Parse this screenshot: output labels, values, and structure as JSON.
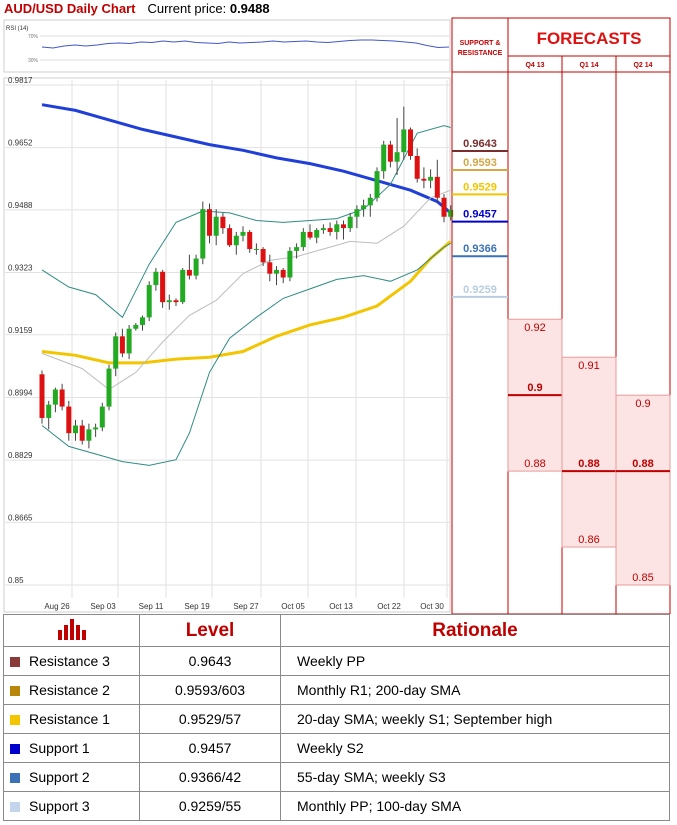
{
  "header": {
    "title": "AUD/USD Daily Chart",
    "price_label": "Current price:",
    "price_value": "0.9488"
  },
  "rsi": {
    "label": "RSI (14)",
    "tick_top": "70%",
    "tick_bottom": "30%"
  },
  "panel": {
    "sr_title": "SUPPORT & RESISTANCE",
    "forecasts_title": "FORECASTS"
  },
  "table": {
    "headers": {
      "level": "Level",
      "rationale": "Rationale"
    },
    "rows": [
      {
        "name": "Resistance 3",
        "level": "0.9643",
        "rationale": "Weekly PP",
        "color": "#8b3a3a"
      },
      {
        "name": "Resistance 2",
        "level": "0.9593/603",
        "rationale": "Monthly R1; 200-day SMA",
        "color": "#b8860b"
      },
      {
        "name": "Resistance 1",
        "level": "0.9529/57",
        "rationale": "20-day SMA; weekly S1; September high",
        "color": "#f2c500"
      },
      {
        "name": "Support 1",
        "level": "0.9457",
        "rationale": "Weekly S2",
        "color": "#0000cc"
      },
      {
        "name": "Support 2",
        "level": "0.9366/42",
        "rationale": "55-day SMA; weekly S3",
        "color": "#3a72b8"
      },
      {
        "name": "Support 3",
        "level": "0.9259/55",
        "rationale": "Monthly PP; 100-day SMA",
        "color": "#c4d4ec"
      }
    ]
  },
  "chart_data": {
    "type": "candlestick",
    "y_ticks": [
      0.9817,
      0.9652,
      0.9488,
      0.9323,
      0.9159,
      0.8994,
      0.8829,
      0.8665,
      0.85
    ],
    "ylim": [
      0.85,
      0.9817
    ],
    "x_ticks": [
      "Aug 26",
      "Sep 03",
      "Sep 11",
      "Sep 19",
      "Sep 27",
      "Oct 05",
      "Oct 13",
      "Oct 22",
      "Oct 30"
    ],
    "candles": [
      [
        0.9055,
        0.9065,
        0.8925,
        0.894
      ],
      [
        0.894,
        0.8985,
        0.891,
        0.8975
      ],
      [
        0.8975,
        0.902,
        0.8955,
        0.9015
      ],
      [
        0.9015,
        0.903,
        0.896,
        0.897
      ],
      [
        0.897,
        0.8985,
        0.888,
        0.89
      ],
      [
        0.89,
        0.8935,
        0.888,
        0.892
      ],
      [
        0.892,
        0.8935,
        0.887,
        0.888
      ],
      [
        0.888,
        0.8925,
        0.886,
        0.891
      ],
      [
        0.891,
        0.8925,
        0.889,
        0.8915
      ],
      [
        0.8915,
        0.898,
        0.8905,
        0.897
      ],
      [
        0.897,
        0.908,
        0.896,
        0.907
      ],
      [
        0.907,
        0.9165,
        0.905,
        0.9155
      ],
      [
        0.9155,
        0.9175,
        0.91,
        0.911
      ],
      [
        0.911,
        0.9185,
        0.9095,
        0.9175
      ],
      [
        0.9175,
        0.919,
        0.917,
        0.9185
      ],
      [
        0.9185,
        0.921,
        0.917,
        0.9205
      ],
      [
        0.9205,
        0.93,
        0.9195,
        0.929
      ],
      [
        0.929,
        0.9335,
        0.9275,
        0.9325
      ],
      [
        0.9325,
        0.933,
        0.923,
        0.9245
      ],
      [
        0.9245,
        0.9265,
        0.9225,
        0.925
      ],
      [
        0.925,
        0.9255,
        0.9235,
        0.9245
      ],
      [
        0.9245,
        0.9335,
        0.924,
        0.933
      ],
      [
        0.933,
        0.937,
        0.9305,
        0.9315
      ],
      [
        0.9315,
        0.937,
        0.9305,
        0.936
      ],
      [
        0.936,
        0.951,
        0.9345,
        0.949
      ],
      [
        0.949,
        0.9505,
        0.94,
        0.942
      ],
      [
        0.942,
        0.949,
        0.9395,
        0.947
      ],
      [
        0.947,
        0.948,
        0.9425,
        0.944
      ],
      [
        0.944,
        0.945,
        0.939,
        0.9395
      ],
      [
        0.9395,
        0.943,
        0.937,
        0.942
      ],
      [
        0.942,
        0.9445,
        0.9405,
        0.943
      ],
      [
        0.943,
        0.9435,
        0.9375,
        0.9385
      ],
      [
        0.9385,
        0.94,
        0.937,
        0.9385
      ],
      [
        0.9385,
        0.939,
        0.934,
        0.935
      ],
      [
        0.935,
        0.937,
        0.93,
        0.932
      ],
      [
        0.932,
        0.934,
        0.929,
        0.933
      ],
      [
        0.933,
        0.9335,
        0.9295,
        0.931
      ],
      [
        0.931,
        0.939,
        0.93,
        0.938
      ],
      [
        0.938,
        0.94,
        0.936,
        0.939
      ],
      [
        0.939,
        0.944,
        0.938,
        0.943
      ],
      [
        0.943,
        0.945,
        0.941,
        0.9415
      ],
      [
        0.9415,
        0.944,
        0.94,
        0.9435
      ],
      [
        0.9435,
        0.945,
        0.9425,
        0.944
      ],
      [
        0.944,
        0.9455,
        0.942,
        0.943
      ],
      [
        0.943,
        0.946,
        0.941,
        0.945
      ],
      [
        0.945,
        0.946,
        0.941,
        0.944
      ],
      [
        0.944,
        0.948,
        0.943,
        0.947
      ],
      [
        0.947,
        0.95,
        0.944,
        0.949
      ],
      [
        0.949,
        0.9515,
        0.947,
        0.95
      ],
      [
        0.95,
        0.953,
        0.947,
        0.952
      ],
      [
        0.952,
        0.96,
        0.951,
        0.959
      ],
      [
        0.959,
        0.967,
        0.957,
        0.966
      ],
      [
        0.966,
        0.967,
        0.96,
        0.9615
      ],
      [
        0.9615,
        0.973,
        0.958,
        0.964
      ],
      [
        0.964,
        0.976,
        0.962,
        0.97
      ],
      [
        0.97,
        0.9705,
        0.962,
        0.963
      ],
      [
        0.963,
        0.965,
        0.956,
        0.957
      ],
      [
        0.957,
        0.96,
        0.9545,
        0.9565
      ],
      [
        0.9565,
        0.9595,
        0.9545,
        0.9575
      ],
      [
        0.9575,
        0.962,
        0.951,
        0.952
      ],
      [
        0.952,
        0.953,
        0.9455,
        0.947
      ],
      [
        0.947,
        0.95,
        0.946,
        0.9488
      ]
    ],
    "lines": [
      {
        "color": "#1f3fd8",
        "width": 3,
        "points": [
          [
            0,
            0.9765
          ],
          [
            5,
            0.975
          ],
          [
            10,
            0.9725
          ],
          [
            15,
            0.97
          ],
          [
            20,
            0.968
          ],
          [
            25,
            0.966
          ],
          [
            30,
            0.9645
          ],
          [
            35,
            0.9625
          ],
          [
            40,
            0.961
          ],
          [
            45,
            0.959
          ],
          [
            50,
            0.9565
          ],
          [
            55,
            0.954
          ],
          [
            59,
            0.951
          ],
          [
            61,
            0.948
          ]
        ]
      },
      {
        "color": "#f2c500",
        "width": 3,
        "points": [
          [
            0,
            0.9115
          ],
          [
            5,
            0.9105
          ],
          [
            10,
            0.9085
          ],
          [
            15,
            0.9085
          ],
          [
            20,
            0.9095
          ],
          [
            25,
            0.91
          ],
          [
            30,
            0.9115
          ],
          [
            35,
            0.9155
          ],
          [
            40,
            0.9185
          ],
          [
            45,
            0.9205
          ],
          [
            50,
            0.9235
          ],
          [
            55,
            0.93
          ],
          [
            58,
            0.936
          ],
          [
            61,
            0.9405
          ]
        ]
      },
      {
        "color": "#2e8b82",
        "width": 1,
        "points": [
          [
            0,
            0.933
          ],
          [
            4,
            0.9285
          ],
          [
            8,
            0.9265
          ],
          [
            12,
            0.9205
          ],
          [
            16,
            0.9345
          ],
          [
            20,
            0.9455
          ],
          [
            24,
            0.9485
          ],
          [
            28,
            0.948
          ],
          [
            32,
            0.946
          ],
          [
            36,
            0.9455
          ],
          [
            40,
            0.946
          ],
          [
            44,
            0.9465
          ],
          [
            48,
            0.949
          ],
          [
            52,
            0.9555
          ],
          [
            56,
            0.969
          ],
          [
            60,
            0.971
          ],
          [
            61,
            0.9705
          ]
        ]
      },
      {
        "color": "#2e8b82",
        "width": 1,
        "points": [
          [
            0,
            0.892
          ],
          [
            4,
            0.8865
          ],
          [
            8,
            0.8845
          ],
          [
            12,
            0.8825
          ],
          [
            16,
            0.8815
          ],
          [
            20,
            0.883
          ],
          [
            22,
            0.89
          ],
          [
            25,
            0.906
          ],
          [
            28,
            0.915
          ],
          [
            32,
            0.9205
          ],
          [
            36,
            0.9255
          ],
          [
            40,
            0.928
          ],
          [
            44,
            0.9305
          ],
          [
            48,
            0.9315
          ],
          [
            52,
            0.93
          ],
          [
            56,
            0.933
          ],
          [
            60,
            0.939
          ],
          [
            61,
            0.94
          ]
        ]
      },
      {
        "color": "#bdbdbd",
        "width": 1,
        "points": [
          [
            0,
            0.911
          ],
          [
            6,
            0.907
          ],
          [
            10,
            0.9015
          ],
          [
            14,
            0.906
          ],
          [
            18,
            0.914
          ],
          [
            22,
            0.921
          ],
          [
            26,
            0.925
          ],
          [
            30,
            0.932
          ],
          [
            34,
            0.9355
          ],
          [
            38,
            0.9365
          ],
          [
            42,
            0.9385
          ],
          [
            46,
            0.9405
          ],
          [
            50,
            0.94
          ],
          [
            54,
            0.9445
          ],
          [
            58,
            0.952
          ],
          [
            61,
            0.954
          ]
        ]
      }
    ],
    "rsi": [
      48,
      46,
      50,
      52,
      50,
      52,
      55,
      56,
      55,
      58,
      57,
      60,
      58,
      60,
      57,
      56,
      55,
      58,
      56,
      57,
      58,
      60,
      58,
      59,
      60,
      58,
      57,
      59,
      61,
      62,
      62,
      61,
      60,
      58,
      56,
      51,
      47,
      48
    ],
    "sr_levels": [
      {
        "label": "0.9643",
        "value": 0.9643,
        "color": "#7b2c2c"
      },
      {
        "label": "0.9593",
        "value": 0.9593,
        "color": "#d4a645"
      },
      {
        "label": "0.9529",
        "value": 0.9529,
        "color": "#f2c500"
      },
      {
        "label": "0.9457",
        "value": 0.9457,
        "color": "#0000cc"
      },
      {
        "label": "0.9366",
        "value": 0.9366,
        "color": "#3a72b8"
      },
      {
        "label": "0.9259",
        "value": 0.9259,
        "color": "#b8cde0"
      }
    ],
    "forecasts": [
      {
        "period": "Q4 13",
        "high": 0.92,
        "mid": 0.9,
        "low": 0.88,
        "high_label": "0.92",
        "mid_label": "0.9",
        "low_label": "0.88"
      },
      {
        "period": "Q1 14",
        "high": 0.91,
        "mid": 0.88,
        "low": 0.86,
        "high_label": "0.91",
        "mid_label": "0.88",
        "low_label": "0.86"
      },
      {
        "period": "Q2 14",
        "high": 0.9,
        "mid": 0.88,
        "low": 0.85,
        "high_label": "0.9",
        "mid_label": "0.88",
        "low_label": "0.85"
      }
    ]
  }
}
